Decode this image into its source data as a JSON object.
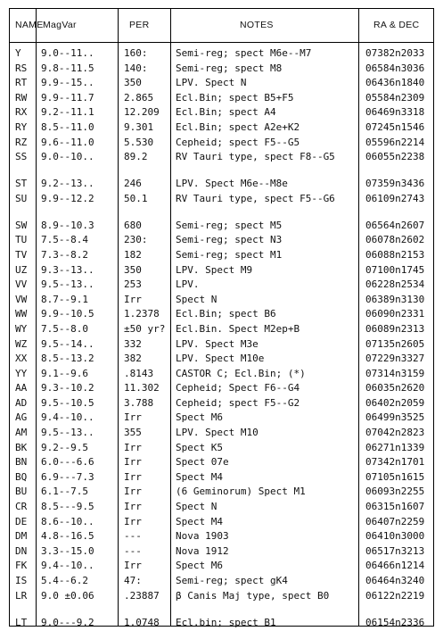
{
  "headers": {
    "name": "NAME",
    "magvar": "MagVar",
    "per": "PER",
    "notes": "NOTES",
    "radec": "RA & DEC"
  },
  "rows": [
    {
      "name": "Y",
      "mag": "9.0--11..",
      "per": "160:",
      "notes": "Semi-reg; spect M6e--M7",
      "ra": "07382n2033"
    },
    {
      "name": "RS",
      "mag": "9.8--11.5",
      "per": "140:",
      "notes": "Semi-reg; spect M8",
      "ra": "06584n3036"
    },
    {
      "name": "RT",
      "mag": "9.9--15..",
      "per": "350",
      "notes": "LPV. Spect N",
      "ra": "06436n1840"
    },
    {
      "name": "RW",
      "mag": "9.9--11.7",
      "per": "2.865",
      "notes": "Ecl.Bin; spect B5+F5",
      "ra": "05584n2309"
    },
    {
      "name": "RX",
      "mag": "9.2--11.1",
      "per": "12.209",
      "notes": "Ecl.Bin; spect A4",
      "ra": "06469n3318"
    },
    {
      "name": "RY",
      "mag": "8.5--11.0",
      "per": "9.301",
      "notes": "Ecl.Bin; spect A2e+K2",
      "ra": "07245n1546"
    },
    {
      "name": "RZ",
      "mag": "9.6--11.0",
      "per": "5.530",
      "notes": "Cepheid; spect F5--G5",
      "ra": "05596n2214"
    },
    {
      "name": "SS",
      "mag": "9.0--10..",
      "per": "89.2",
      "notes": "RV Tauri type, spect F8--G5",
      "ra": "06055n2238"
    },
    {
      "name": "ST",
      "mag": "9.2--13..",
      "per": "246",
      "notes": "LPV. Spect M6e--M8e",
      "ra": "07359n3436"
    },
    {
      "name": "SU",
      "mag": "9.9--12.2",
      "per": "50.1",
      "notes": "RV Tauri type, spect F5--G6",
      "ra": "06109n2743"
    },
    {
      "name": "SW",
      "mag": "8.9--10.3",
      "per": "680",
      "notes": "Semi-reg; spect M5",
      "ra": "06564n2607"
    },
    {
      "name": "TU",
      "mag": "7.5--8.4",
      "per": "230:",
      "notes": "Semi-reg; spect N3",
      "ra": "06078n2602"
    },
    {
      "name": "TV",
      "mag": "7.3--8.2",
      "per": "182",
      "notes": "Semi-reg; spect M1",
      "ra": "06088n2153"
    },
    {
      "name": "UZ",
      "mag": "9.3--13..",
      "per": "350",
      "notes": "LPV. Spect M9",
      "ra": "07100n1745"
    },
    {
      "name": "VV",
      "mag": "9.5--13..",
      "per": "253",
      "notes": "LPV.",
      "ra": "06228n2534"
    },
    {
      "name": "VW",
      "mag": "8.7--9.1",
      "per": "Irr",
      "notes": "Spect N",
      "ra": "06389n3130"
    },
    {
      "name": "WW",
      "mag": "9.9--10.5",
      "per": "1.2378",
      "notes": "Ecl.Bin; spect B6",
      "ra": "06090n2331"
    },
    {
      "name": "WY",
      "mag": "7.5--8.0",
      "per": "±50 yr?",
      "notes": "Ecl.Bin. Spect M2ep+B",
      "ra": "06089n2313"
    },
    {
      "name": "WZ",
      "mag": "9.5--14..",
      "per": "332",
      "notes": "LPV. Spect M3e",
      "ra": "07135n2605"
    },
    {
      "name": "XX",
      "mag": "8.5--13.2",
      "per": "382",
      "notes": "LPV. Spect M10e",
      "ra": "07229n3327"
    },
    {
      "name": "YY",
      "mag": "9.1--9.6",
      "per": ".8143",
      "notes": "CASTOR C; Ecl.Bin; (*)",
      "ra": "07314n3159"
    },
    {
      "name": "AA",
      "mag": "9.3--10.2",
      "per": "11.302",
      "notes": "Cepheid; Spect F6--G4",
      "ra": "06035n2620"
    },
    {
      "name": "AD",
      "mag": "9.5--10.5",
      "per": "3.788",
      "notes": "Cepheid; spect F5--G2",
      "ra": "06402n2059"
    },
    {
      "name": "AG",
      "mag": "9.4--10..",
      "per": "Irr",
      "notes": "Spect M6",
      "ra": "06499n3525"
    },
    {
      "name": "AM",
      "mag": "9.5--13..",
      "per": "355",
      "notes": "LPV. Spect M10",
      "ra": "07042n2823"
    },
    {
      "name": "BK",
      "mag": "9.2--9.5",
      "per": "Irr",
      "notes": "Spect K5",
      "ra": "06271n1339"
    },
    {
      "name": "BN",
      "mag": "6.0---6.6",
      "per": "Irr",
      "notes": "Spect 07e",
      "ra": "07342n1701"
    },
    {
      "name": "BQ",
      "mag": "6.9---7.3",
      "per": "Irr",
      "notes": "Spect M4",
      "ra": "07105n1615"
    },
    {
      "name": "BU",
      "mag": "6.1--7.5",
      "per": "Irr",
      "notes": "(6 Geminorum) Spect M1",
      "ra": "06093n2255"
    },
    {
      "name": "CR",
      "mag": "8.5---9.5",
      "per": "Irr",
      "notes": "Spect N",
      "ra": "06315n1607"
    },
    {
      "name": "DE",
      "mag": "8.6--10..",
      "per": "Irr",
      "notes": "Spect M4",
      "ra": "06407n2259"
    },
    {
      "name": "DM",
      "mag": "4.8--16.5",
      "per": "---",
      "notes": "Nova 1903",
      "ra": "06410n3000"
    },
    {
      "name": "DN",
      "mag": "3.3--15.0",
      "per": "---",
      "notes": "Nova 1912",
      "ra": "06517n3213"
    },
    {
      "name": "FK",
      "mag": "9.4--10..",
      "per": "Irr",
      "notes": "Spect M6",
      "ra": "06466n1214"
    },
    {
      "name": "IS",
      "mag": "5.4--6.2",
      "per": "47:",
      "notes": "Semi-reg; spect gK4",
      "ra": "06464n3240"
    },
    {
      "name": "LR",
      "mag": "9.0 ±0.06",
      "per": ".23887",
      "notes": "β Canis Maj type, spect B0",
      "ra": "06122n2219"
    },
    {
      "name": "LT",
      "mag": "9.0---9.2",
      "per": "1.0748",
      "notes": "Ecl.bin; spect B1",
      "ra": "06154n2336"
    }
  ]
}
